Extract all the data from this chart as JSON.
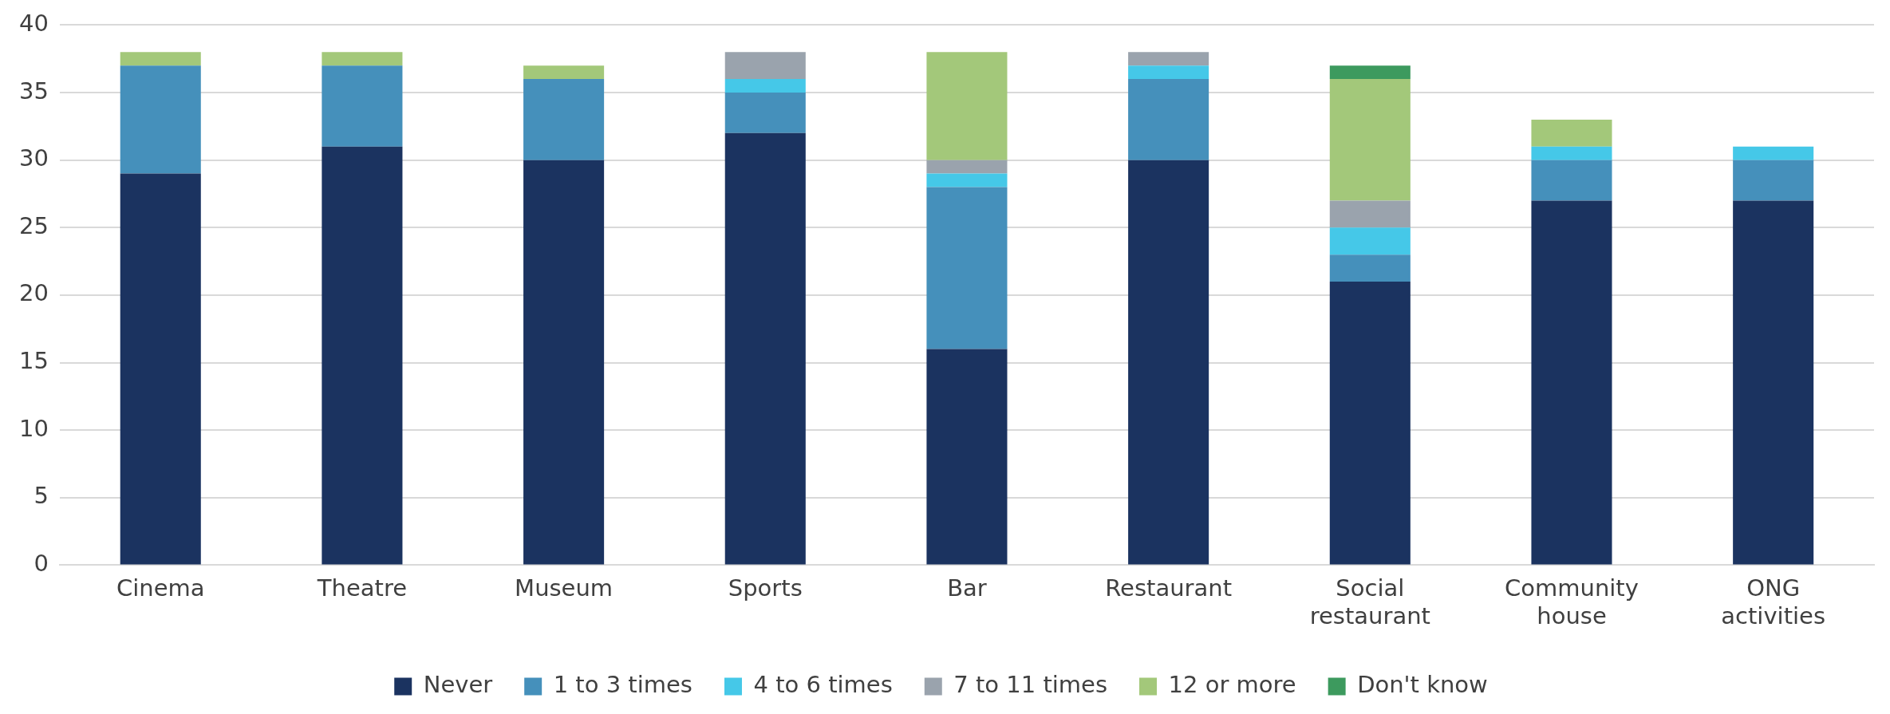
{
  "chart_data": {
    "type": "bar",
    "stacked": true,
    "categories": [
      "Cinema",
      "Theatre",
      "Museum",
      "Sports",
      "Bar",
      "Restaurant",
      "Social restaurant",
      "Community house",
      "ONG activities"
    ],
    "series": [
      {
        "name": "Never",
        "color": "#1b3360",
        "values": [
          29,
          31,
          30,
          32,
          16,
          30,
          21,
          27,
          27
        ]
      },
      {
        "name": "1 to 3 times",
        "color": "#4590bb",
        "values": [
          8,
          6,
          6,
          3,
          12,
          6,
          2,
          3,
          3
        ]
      },
      {
        "name": "4 to 6 times",
        "color": "#45c8e8",
        "values": [
          0,
          0,
          0,
          1,
          1,
          1,
          2,
          1,
          1
        ]
      },
      {
        "name": "7 to 11 times",
        "color": "#9aa3ad",
        "values": [
          0,
          0,
          0,
          2,
          1,
          1,
          2,
          0,
          0
        ]
      },
      {
        "name": "12 or more",
        "color": "#a3c87a",
        "values": [
          1,
          1,
          1,
          0,
          8,
          0,
          9,
          2,
          0
        ]
      },
      {
        "name": "Don't know",
        "color": "#3d9a5e",
        "values": [
          0,
          0,
          0,
          0,
          0,
          0,
          1,
          0,
          0
        ]
      }
    ],
    "ylim": [
      0,
      40
    ],
    "yticks": [
      0,
      5,
      10,
      15,
      20,
      25,
      30,
      35,
      40
    ],
    "grid": "y",
    "legend": "bottom"
  }
}
